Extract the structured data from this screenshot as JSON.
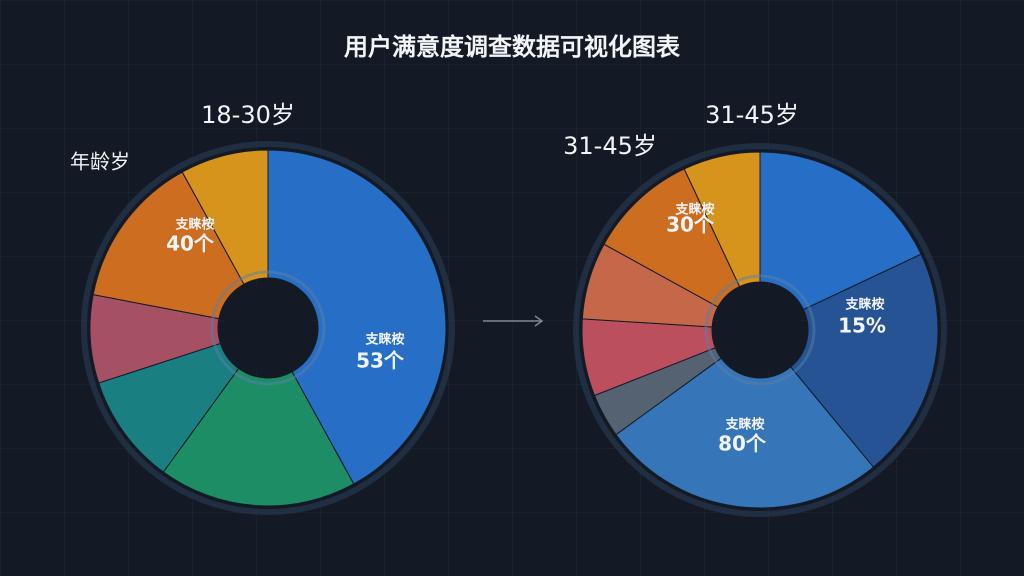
{
  "title": "用户满意度调查数据可视化图表",
  "chart_data": [
    {
      "type": "pie",
      "title": "18-30岁",
      "categories": [
        null,
        null,
        null,
        null,
        null,
        null
      ],
      "values": [
        42,
        18,
        10,
        8,
        14,
        8
      ],
      "colors": [
        "#2a78d8",
        "#1f9a6e",
        "#1b8a8c",
        "#b6566a",
        "#e2771f",
        "#eda21c"
      ],
      "annotations": [
        "年龄岁",
        "支睐桉",
        "40个",
        "支睐桉",
        "53个"
      ]
    },
    {
      "type": "pie",
      "title": "31-45岁",
      "categories": [
        null,
        null,
        null,
        null,
        null,
        null,
        null,
        null
      ],
      "values": [
        18,
        21,
        26,
        4,
        7,
        7,
        10,
        7
      ],
      "colors": [
        "#2a78d8",
        "#275aa0",
        "#3a7fc8",
        "#5c6a7a",
        "#cf5565",
        "#d9704e",
        "#e2771f",
        "#eda21c"
      ],
      "annotations": [
        "31-45岁",
        "支睐桉",
        "30个",
        "支睐桉",
        "15%",
        "支睐桉",
        "80个"
      ]
    }
  ]
}
